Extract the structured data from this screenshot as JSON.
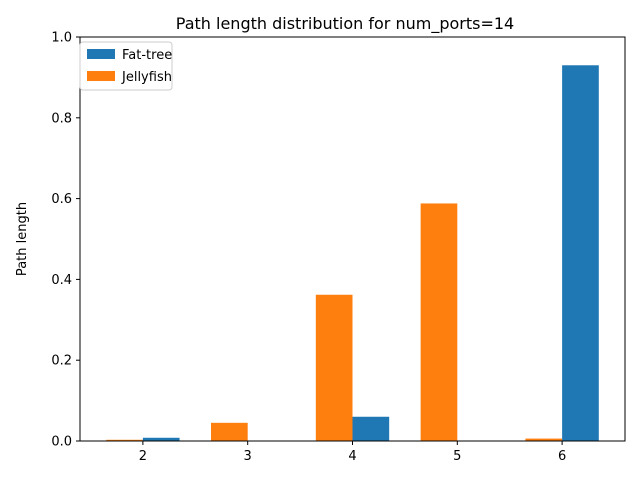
{
  "chart_data": {
    "type": "bar",
    "title": "Path length distribution for num_ports=14",
    "xlabel": "",
    "ylabel": "Path length",
    "categories": [
      "2",
      "3",
      "4",
      "5",
      "6"
    ],
    "ylim": [
      0,
      1.0
    ],
    "yticks": [
      "0.0",
      "0.2",
      "0.4",
      "0.6",
      "0.8",
      "1.0"
    ],
    "grid": false,
    "legend_position": "top-left",
    "series": [
      {
        "name": "Fat-tree",
        "color": "#1f77b4",
        "values": [
          0.008,
          0.0,
          0.06,
          0.0,
          0.93
        ]
      },
      {
        "name": "Jellyfish",
        "color": "#ff7f0e",
        "values": [
          0.003,
          0.045,
          0.362,
          0.588,
          0.006
        ]
      }
    ]
  }
}
